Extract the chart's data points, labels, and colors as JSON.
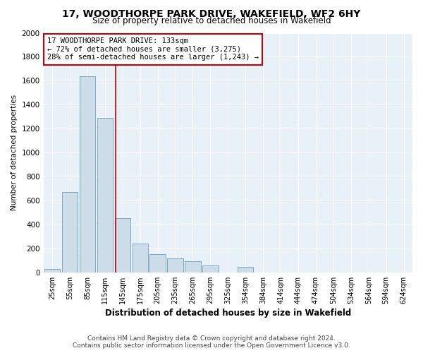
{
  "title": "17, WOODTHORPE PARK DRIVE, WAKEFIELD, WF2 6HY",
  "subtitle": "Size of property relative to detached houses in Wakefield",
  "xlabel": "Distribution of detached houses by size in Wakefield",
  "ylabel": "Number of detached properties",
  "bar_color": "#ccdce8",
  "bar_edge_color": "#7aaac8",
  "background_color": "#e8f0f8",
  "grid_color": "#ffffff",
  "categories": [
    "25sqm",
    "55sqm",
    "85sqm",
    "115sqm",
    "145sqm",
    "175sqm",
    "205sqm",
    "235sqm",
    "265sqm",
    "295sqm",
    "325sqm",
    "354sqm",
    "384sqm",
    "414sqm",
    "444sqm",
    "474sqm",
    "504sqm",
    "534sqm",
    "564sqm",
    "594sqm",
    "624sqm"
  ],
  "values": [
    30,
    670,
    1640,
    1290,
    450,
    240,
    155,
    115,
    95,
    55,
    0,
    45,
    0,
    0,
    0,
    0,
    0,
    0,
    0,
    0,
    0
  ],
  "ylim": [
    0,
    2000
  ],
  "yticks": [
    0,
    200,
    400,
    600,
    800,
    1000,
    1200,
    1400,
    1600,
    1800,
    2000
  ],
  "vline_color": "#cc0000",
  "vline_pos": 3.6,
  "annotation_text": "17 WOODTHORPE PARK DRIVE: 133sqm\n← 72% of detached houses are smaller (3,275)\n28% of semi-detached houses are larger (1,243) →",
  "annotation_box_facecolor": "#ffffff",
  "annotation_box_edgecolor": "#cc0000",
  "footer_line1": "Contains HM Land Registry data © Crown copyright and database right 2024.",
  "footer_line2": "Contains public sector information licensed under the Open Government Licence v3.0."
}
